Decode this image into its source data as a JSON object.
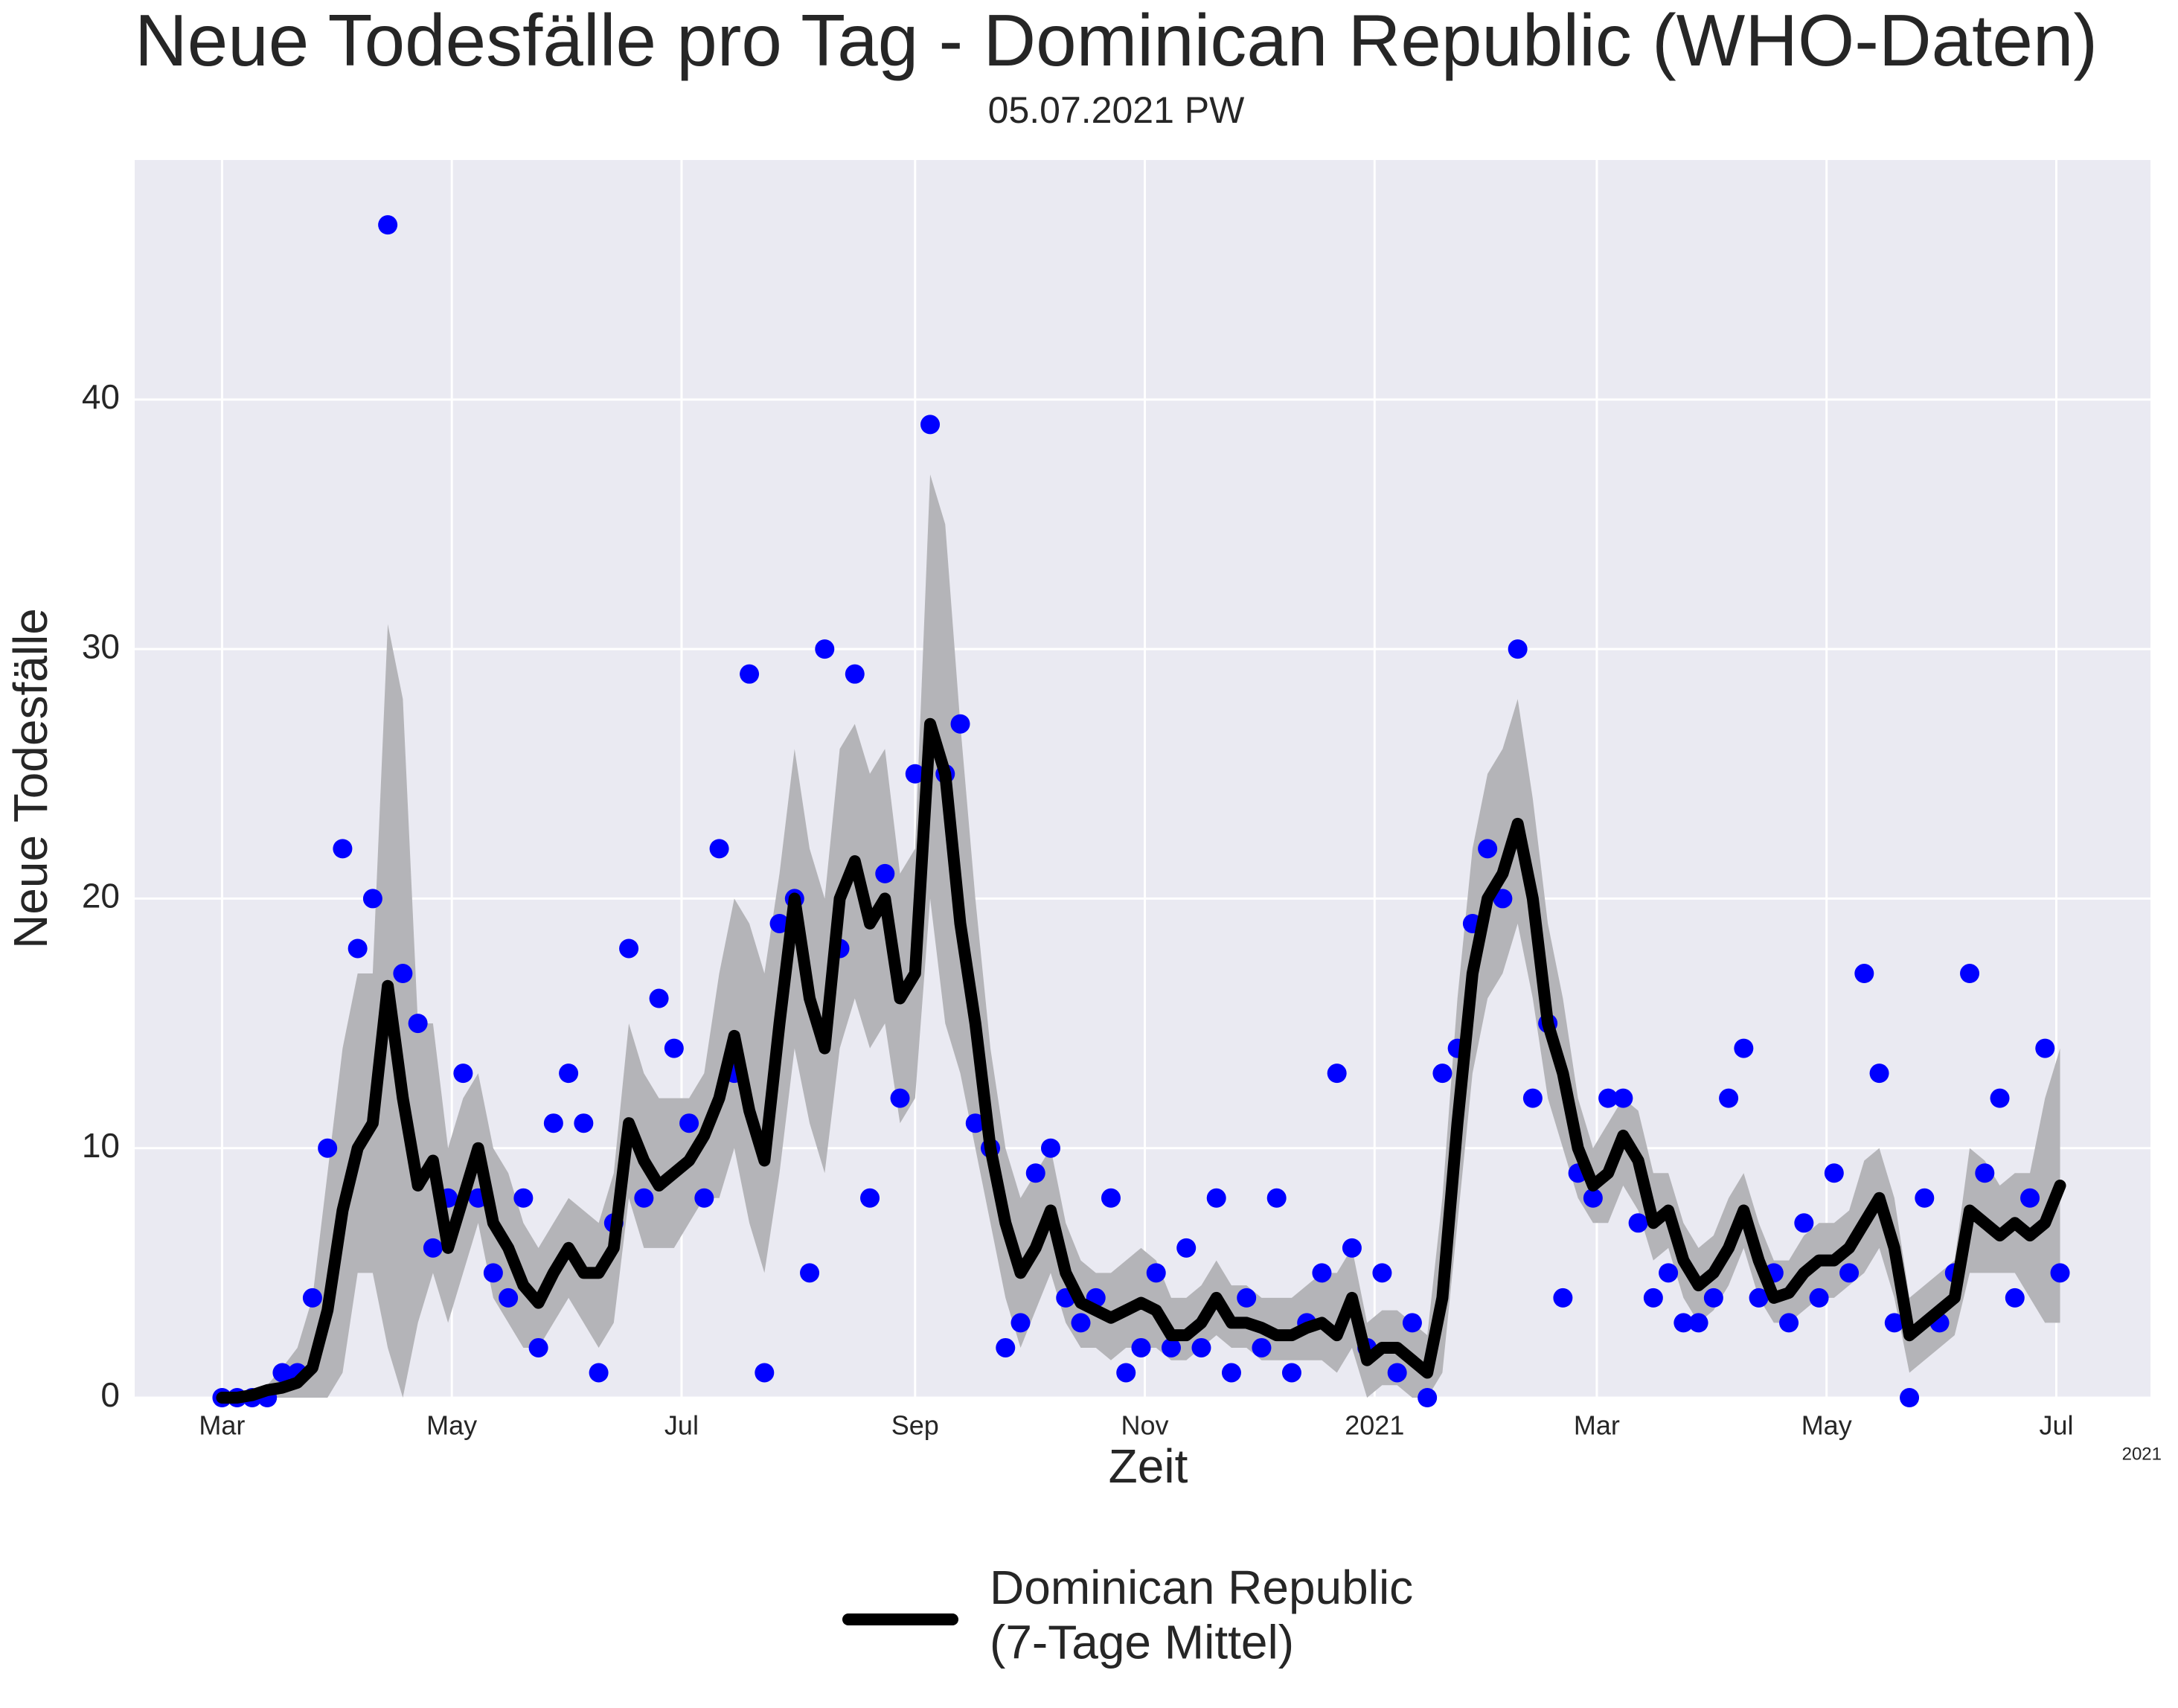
{
  "chart_data": {
    "type": "line",
    "title": "Neue Todesfälle pro Tag - Dominican Republic (WHO-Daten)",
    "subtitle": "05.07.2021 PW",
    "xlabel": "Zeit",
    "ylabel": "Neue Todesfälle",
    "x_offset_label": "2021",
    "x": [
      0,
      4,
      8,
      12,
      16,
      20,
      24,
      28,
      32,
      36,
      40,
      44,
      48,
      52,
      56,
      60,
      64,
      68,
      72,
      76,
      80,
      84,
      88,
      92,
      96,
      100,
      104,
      108,
      112,
      116,
      120,
      124,
      128,
      132,
      136,
      140,
      144,
      148,
      152,
      156,
      160,
      164,
      168,
      172,
      176,
      180,
      184,
      188,
      192,
      196,
      200,
      204,
      208,
      212,
      216,
      220,
      224,
      228,
      232,
      236,
      240,
      244,
      248,
      252,
      256,
      260,
      264,
      268,
      272,
      276,
      280,
      284,
      288,
      292,
      296,
      300,
      304,
      308,
      312,
      316,
      320,
      324,
      328,
      332,
      336,
      340,
      344,
      348,
      352,
      356,
      360,
      364,
      368,
      372,
      376,
      380,
      384,
      388,
      392,
      396,
      400,
      404,
      408,
      412,
      416,
      420,
      424,
      428,
      432,
      436,
      440,
      444,
      448,
      452,
      456,
      460,
      464,
      468,
      472,
      476,
      480,
      484,
      488
    ],
    "series": [
      {
        "type": "scatter",
        "color": "#0000ff",
        "values": [
          0,
          0,
          0,
          0,
          1,
          1,
          4,
          10,
          22,
          18,
          20,
          47,
          17,
          15,
          6,
          8,
          13,
          8,
          5,
          4,
          8,
          2,
          11,
          13,
          11,
          1,
          7,
          18,
          8,
          16,
          14,
          11,
          8,
          22,
          13,
          29,
          1,
          19,
          20,
          5,
          30,
          18,
          29,
          8,
          21,
          12,
          25,
          39,
          25,
          27,
          11,
          10,
          2,
          3,
          9,
          10,
          4,
          3,
          4,
          8,
          1,
          2,
          5,
          2,
          6,
          2,
          8,
          1,
          4,
          2,
          8,
          1,
          3,
          5,
          13,
          6,
          2,
          5,
          1,
          3,
          0,
          13,
          14,
          19,
          22,
          20,
          30,
          12,
          15,
          4,
          9,
          8,
          12,
          12,
          7,
          4,
          5,
          3,
          3,
          4,
          12,
          14,
          4,
          5,
          3,
          7,
          4,
          9,
          5,
          17,
          13,
          3,
          0,
          8,
          3,
          5,
          17,
          9,
          12,
          4,
          8,
          14,
          5
        ]
      },
      {
        "type": "line",
        "name": "Dominican Republic\n(7-Tage Mittel)",
        "color": "#000000",
        "band_color": "#b4b4b8",
        "values": [
          0,
          0,
          0.1,
          0.3,
          0.4,
          0.6,
          1.2,
          3.5,
          7.5,
          10,
          11,
          16.5,
          12,
          8.5,
          9.5,
          6,
          8,
          10,
          7,
          6,
          4.5,
          3.8,
          5,
          6,
          5,
          5,
          6,
          11,
          9.5,
          8.5,
          9,
          9.5,
          10.5,
          12,
          14.5,
          11.5,
          9.5,
          15,
          20,
          16,
          14,
          20,
          21.5,
          19,
          20,
          16,
          17,
          27,
          25,
          19,
          15,
          10,
          7,
          5,
          6,
          7.5,
          5,
          3.8,
          3.5,
          3.2,
          3.5,
          3.8,
          3.5,
          2.5,
          2.5,
          3,
          4,
          3,
          3,
          2.8,
          2.5,
          2.5,
          2.8,
          3,
          2.5,
          4,
          1.5,
          2,
          2,
          1.5,
          1,
          4,
          11,
          17,
          20,
          21,
          23,
          20,
          15,
          13,
          10,
          8.5,
          9,
          10.5,
          9.5,
          7,
          7.5,
          5.5,
          4.5,
          5,
          6,
          7.5,
          5.5,
          4,
          4.2,
          5,
          5.5,
          5.5,
          6,
          7,
          8,
          6,
          2.5,
          3,
          3.5,
          4,
          7.5,
          7,
          6.5,
          7,
          6.5,
          7,
          8.5
        ],
        "band_lower": [
          0,
          0,
          0,
          0,
          0,
          0,
          0,
          0,
          1,
          5,
          5,
          2,
          0,
          3,
          5,
          3,
          5,
          7,
          4,
          3,
          2,
          2,
          3,
          4,
          3,
          2,
          3,
          8,
          6,
          6,
          6,
          7,
          8,
          8,
          10,
          7,
          5,
          9,
          14,
          11,
          9,
          14,
          16,
          14,
          15,
          11,
          12,
          20,
          15,
          13,
          10,
          7,
          4,
          2,
          3.5,
          5,
          3,
          2,
          2,
          1.5,
          2,
          2,
          2,
          1.5,
          1.5,
          2,
          2.5,
          2,
          2,
          1.5,
          1.5,
          1.5,
          1.5,
          1.5,
          1,
          2,
          0,
          0.5,
          0.5,
          0,
          0,
          1,
          7,
          13,
          16,
          17,
          19,
          16,
          12,
          10,
          8,
          7,
          7,
          8.5,
          7.5,
          5.5,
          6,
          4,
          3,
          3.5,
          4.5,
          6,
          4,
          3,
          3,
          3.5,
          4,
          4,
          4.5,
          5,
          6,
          4,
          1,
          1.5,
          2,
          2.5,
          5,
          5,
          5,
          5,
          4,
          3,
          3
        ],
        "band_upper": [
          0,
          0,
          0.3,
          0.5,
          1.2,
          2,
          4,
          9,
          14,
          17,
          17,
          31,
          28,
          15,
          15,
          10,
          12,
          13,
          10,
          9,
          7,
          6,
          7,
          8,
          7.5,
          7,
          9,
          15,
          13,
          12,
          12,
          12,
          13,
          17,
          20,
          19,
          17,
          21,
          26,
          22,
          20,
          26,
          27,
          25,
          26,
          21,
          22,
          37,
          35,
          27,
          20,
          14,
          10,
          8,
          9,
          10,
          7,
          5.5,
          5,
          5,
          5.5,
          6,
          5.5,
          4,
          4,
          4.5,
          5.5,
          4.5,
          4.5,
          4,
          4,
          4,
          4.5,
          5,
          5,
          6,
          3,
          3.5,
          3.5,
          3,
          2.5,
          8,
          16,
          22,
          25,
          26,
          28,
          24,
          19,
          16,
          12,
          10,
          11,
          12,
          11.5,
          9,
          9,
          7,
          6,
          6.5,
          8,
          9,
          7,
          5.5,
          5.5,
          6.5,
          7,
          7,
          7.5,
          9.5,
          10,
          8,
          4,
          4.5,
          5,
          5.5,
          10,
          9.5,
          8.5,
          9,
          9,
          12,
          14
        ]
      }
    ],
    "xlim": [
      -23.2,
      512
    ],
    "xticks": [
      {
        "value": 0,
        "label": "Mar"
      },
      {
        "value": 61,
        "label": "May"
      },
      {
        "value": 122,
        "label": "Jul"
      },
      {
        "value": 184,
        "label": "Sep"
      },
      {
        "value": 245,
        "label": "Nov"
      },
      {
        "value": 306,
        "label": "2021"
      },
      {
        "value": 365,
        "label": "Mar"
      },
      {
        "value": 426,
        "label": "May"
      },
      {
        "value": 487,
        "label": "Jul"
      }
    ],
    "ylim": [
      0,
      49.6
    ],
    "yticks": [
      0,
      10,
      20,
      30,
      40
    ],
    "grid": true,
    "legend": "lower center"
  }
}
